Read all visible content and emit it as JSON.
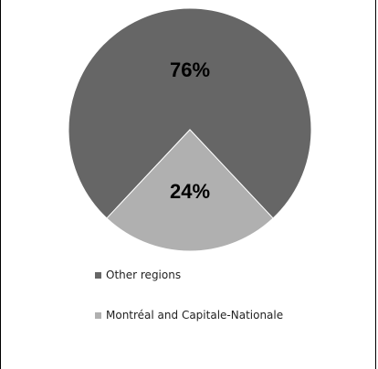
{
  "chart_data": {
    "type": "pie",
    "title": "",
    "slices": [
      {
        "label": "Other regions",
        "value": 76,
        "value_label": "76%",
        "color": "#666666"
      },
      {
        "label": "Montréal and Capitale-Nationale",
        "value": 24,
        "value_label": "24%",
        "color": "#b0b0b0"
      }
    ],
    "legend_position": "bottom"
  }
}
